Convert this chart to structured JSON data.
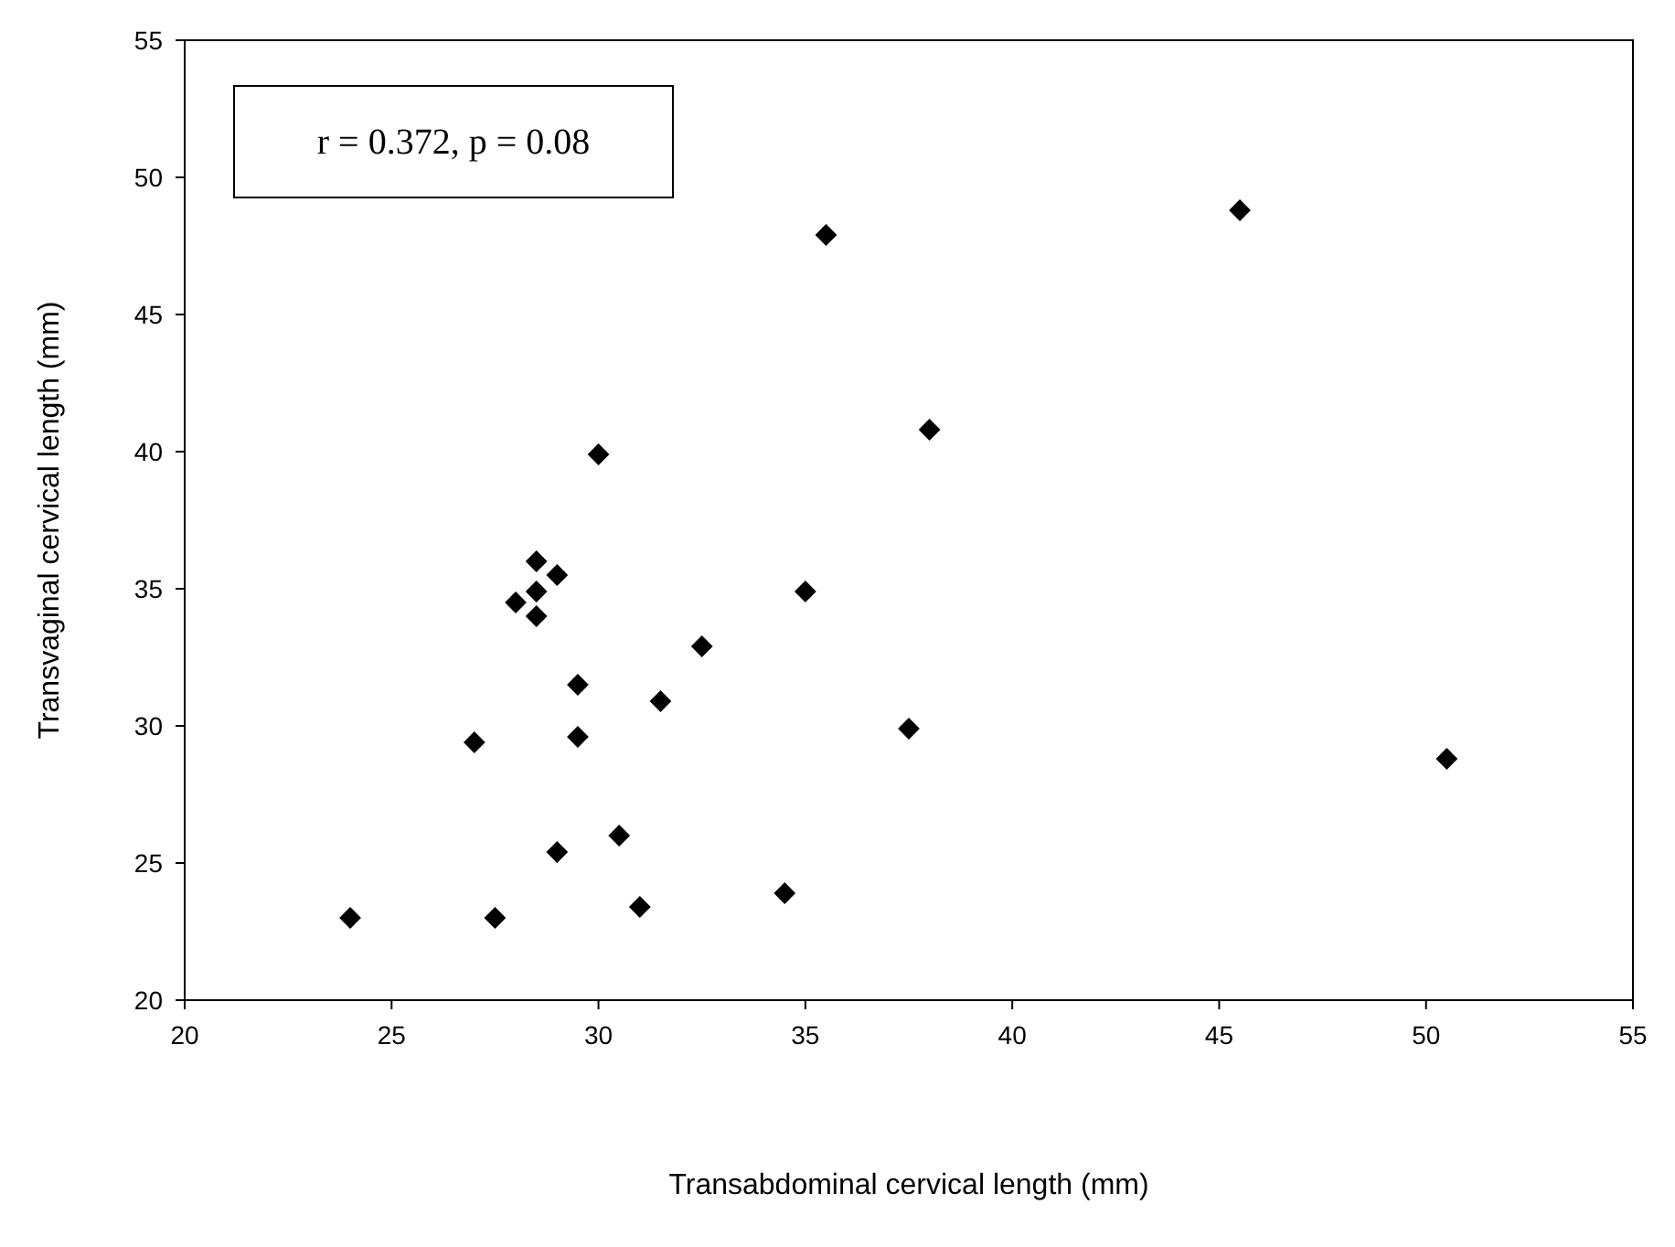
{
  "chart_data": {
    "type": "scatter",
    "xlabel": "Transabdominal cervical length (mm)",
    "ylabel": "Transvaginal cervical length (mm)",
    "annotations": [
      "r = 0.372, p = 0.08"
    ],
    "xlim": [
      20,
      55
    ],
    "xticks": [
      20,
      25,
      30,
      35,
      40,
      45,
      50,
      55
    ],
    "ylim": [
      20,
      55
    ],
    "yticks": [
      20,
      25,
      30,
      35,
      40,
      45,
      50,
      55
    ],
    "grid": false,
    "marker": "diamond",
    "series": [
      {
        "color": "#000000",
        "x": [
          24,
          27.5,
          27,
          28,
          28.5,
          28.5,
          28.5,
          29,
          29.5,
          29.5,
          29,
          30,
          30.5,
          31,
          31.5,
          32.5,
          34.5,
          35,
          35.5,
          38,
          37.5,
          45.5,
          50.5
        ],
        "values": [
          23,
          23,
          29.4,
          34.5,
          36,
          34.9,
          34,
          35.5,
          31.5,
          29.6,
          25.4,
          39.9,
          26,
          23.4,
          30.9,
          32.9,
          23.9,
          34.9,
          47.9,
          40.8,
          29.9,
          48.8,
          28.8
        ]
      }
    ]
  }
}
